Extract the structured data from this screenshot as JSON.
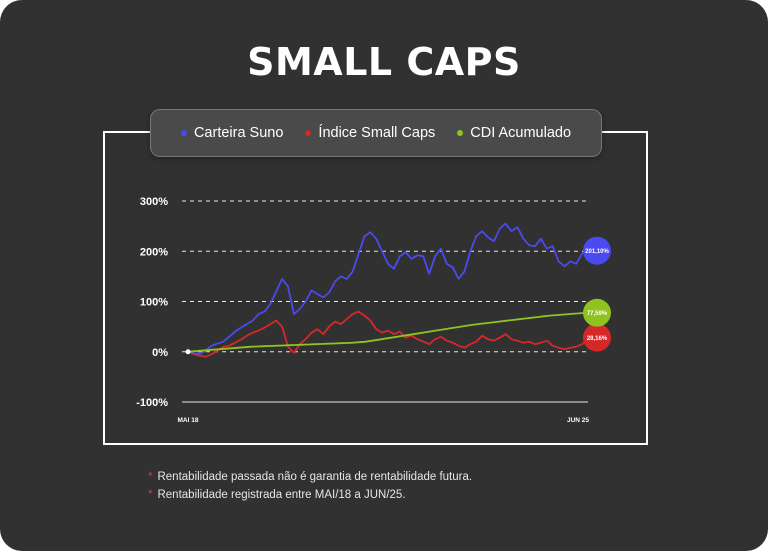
{
  "title": "SMALL CAPS",
  "legend": [
    {
      "label": "Carteira Suno",
      "color": "#4a4af0"
    },
    {
      "label": "Índice Small Caps",
      "color": "#d62828"
    },
    {
      "label": "CDI Acumulado",
      "color": "#8fc31f"
    }
  ],
  "notes": [
    {
      "marker": "*",
      "text": "Rentabilidade passada não é garantia de rentabilidade futura."
    },
    {
      "marker": "*",
      "text": "Rentabilidade registrada entre MAI/18 a JUN/25."
    }
  ],
  "chart_data": {
    "type": "line",
    "title": "SMALL CAPS",
    "x_start_label": "MAI 18",
    "x_end_label": "JUN 25",
    "x_range": [
      "2018-05",
      "2025-06"
    ],
    "ylim": [
      -100,
      300
    ],
    "yticks": [
      300,
      200,
      100,
      0,
      -100
    ],
    "ytick_labels": [
      "300%",
      "200%",
      "100%",
      "0%",
      "-100%"
    ],
    "grid": "dashed horizontal",
    "series": [
      {
        "name": "Carteira Suno",
        "color": "#4a4af0",
        "end_label": "201,10%",
        "values": [
          0,
          -3,
          -4,
          2,
          12,
          16,
          20,
          30,
          40,
          48,
          55,
          62,
          75,
          80,
          95,
          120,
          145,
          130,
          75,
          85,
          100,
          122,
          115,
          108,
          118,
          140,
          150,
          145,
          160,
          195,
          230,
          238,
          225,
          200,
          175,
          165,
          190,
          198,
          185,
          192,
          190,
          155,
          190,
          205,
          175,
          168,
          145,
          160,
          200,
          230,
          240,
          228,
          220,
          245,
          255,
          240,
          248,
          225,
          212,
          210,
          225,
          205,
          210,
          180,
          170,
          180,
          175,
          195,
          201.1
        ]
      },
      {
        "name": "Índice Small Caps",
        "color": "#d62828",
        "end_label": "28,16%",
        "values": [
          0,
          -5,
          -8,
          -10,
          -5,
          2,
          10,
          12,
          18,
          24,
          32,
          38,
          42,
          48,
          55,
          62,
          50,
          10,
          -2,
          15,
          25,
          38,
          45,
          35,
          50,
          60,
          55,
          65,
          75,
          80,
          72,
          62,
          45,
          38,
          42,
          35,
          40,
          28,
          32,
          25,
          20,
          15,
          25,
          30,
          22,
          18,
          12,
          8,
          15,
          20,
          32,
          25,
          22,
          28,
          35,
          25,
          22,
          18,
          20,
          15,
          18,
          22,
          12,
          8,
          5,
          8,
          10,
          15,
          28.16
        ]
      },
      {
        "name": "CDI Acumulado",
        "color": "#8fc31f",
        "end_label": "77,59%",
        "values": [
          0,
          1,
          2,
          3,
          4,
          5,
          6,
          7,
          8,
          9,
          10,
          10.5,
          11,
          11.5,
          12,
          12.5,
          13,
          13.5,
          14,
          14.5,
          15,
          15.5,
          16,
          16.5,
          17,
          17.5,
          18,
          19,
          20,
          22,
          24,
          26,
          28,
          30,
          32,
          34,
          36,
          38,
          40,
          42,
          44,
          46,
          48,
          50,
          52,
          54,
          55.5,
          57,
          58.5,
          60,
          61.5,
          63,
          64.5,
          66,
          67.5,
          69,
          70.5,
          72,
          73,
          74,
          75,
          76,
          77,
          77.59
        ]
      }
    ]
  }
}
